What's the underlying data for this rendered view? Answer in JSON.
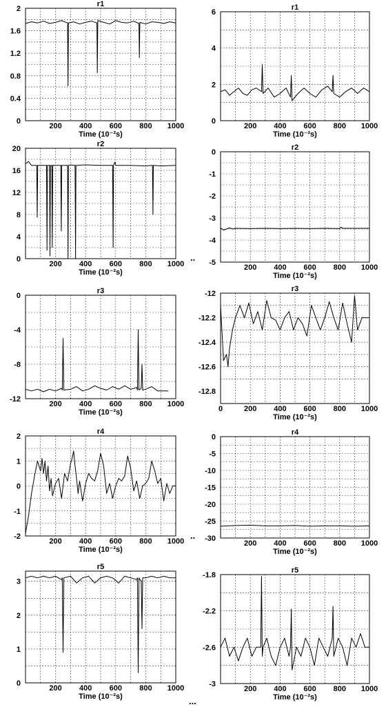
{
  "separators": [
    "..",
    "..",
    "..."
  ],
  "chart_data": [
    {
      "type": "line",
      "title": "r1",
      "xlabel": "Time (10⁻²s)",
      "xlim": [
        0,
        1000
      ],
      "ylim": [
        0,
        2
      ],
      "xticks": [
        200,
        400,
        600,
        800,
        1000
      ],
      "xtick_labels": [
        "200",
        "400",
        "600",
        "800",
        "1000"
      ],
      "yticks": [
        0,
        0.4,
        0.8,
        1.2,
        1.6,
        2
      ],
      "ytick_labels": [
        "0",
        "0.4",
        "0.8",
        "1.2",
        "1.6",
        "2"
      ],
      "series": [
        {
          "x": [
            0,
            40,
            80,
            120,
            160,
            200,
            240,
            280,
            283,
            286,
            320,
            360,
            400,
            440,
            475,
            478,
            481,
            520,
            560,
            600,
            640,
            680,
            720,
            755,
            758,
            761,
            800,
            840,
            880,
            920,
            960,
            1000
          ],
          "y": [
            1.73,
            1.76,
            1.74,
            1.77,
            1.73,
            1.75,
            1.78,
            1.74,
            0.62,
            1.74,
            1.76,
            1.72,
            1.75,
            1.77,
            1.74,
            0.85,
            1.78,
            1.75,
            1.72,
            1.78,
            1.75,
            1.74,
            1.77,
            1.73,
            1.12,
            1.75,
            1.72,
            1.76,
            1.75,
            1.73,
            1.76,
            1.74
          ]
        }
      ]
    },
    {
      "type": "line",
      "title": "r1",
      "xlabel": "Time (10⁻²s)",
      "xlim": [
        0,
        1000
      ],
      "ylim": [
        0,
        6
      ],
      "xticks": [
        200,
        400,
        600,
        800,
        1000
      ],
      "xtick_labels": [
        "200",
        "400",
        "600",
        "800",
        "1000"
      ],
      "yticks": [
        0,
        2,
        4,
        6
      ],
      "ytick_labels": [
        "0",
        "2",
        "4",
        "6"
      ],
      "series": [
        {
          "x": [
            0,
            30,
            60,
            90,
            120,
            150,
            180,
            210,
            240,
            275,
            280,
            285,
            320,
            360,
            400,
            440,
            470,
            475,
            480,
            520,
            560,
            600,
            640,
            680,
            720,
            750,
            755,
            760,
            800,
            840,
            880,
            920,
            960,
            1000
          ],
          "y": [
            1.6,
            1.7,
            1.4,
            1.6,
            1.8,
            1.5,
            1.4,
            1.7,
            1.8,
            1.6,
            3.1,
            1.5,
            1.8,
            1.3,
            1.5,
            1.8,
            1.3,
            2.5,
            1.1,
            1.5,
            1.8,
            1.5,
            1.3,
            1.7,
            1.9,
            1.6,
            2.5,
            1.5,
            1.3,
            1.6,
            1.8,
            1.5,
            1.8,
            1.6
          ]
        }
      ]
    },
    {
      "type": "line",
      "title": "r2",
      "xlabel": "Time (10⁻²s)",
      "xlim": [
        0,
        1000
      ],
      "ylim": [
        0,
        20
      ],
      "xticks": [
        200,
        400,
        600,
        800,
        1000
      ],
      "xtick_labels": [
        "200",
        "400",
        "600",
        "800",
        "1000"
      ],
      "yticks": [
        0,
        4,
        8,
        12,
        16,
        20
      ],
      "ytick_labels": [
        "0",
        "4",
        "8",
        "12",
        "16",
        "20"
      ],
      "series": [
        {
          "x": [
            0,
            20,
            40,
            75,
            78,
            81,
            140,
            143,
            146,
            160,
            163,
            166,
            175,
            178,
            181,
            235,
            238,
            241,
            280,
            283,
            286,
            300,
            330,
            333,
            336,
            400,
            500,
            580,
            583,
            586,
            595,
            600,
            700,
            800,
            845,
            848,
            851,
            900,
            1000
          ],
          "y": [
            17.2,
            17.6,
            16.9,
            16.9,
            7.5,
            16.9,
            16.9,
            1.5,
            16.9,
            16.9,
            0.5,
            16.9,
            16.9,
            2,
            16.9,
            16.9,
            5,
            16.9,
            16.9,
            0,
            16.9,
            17,
            16.9,
            0,
            16.9,
            17,
            16.9,
            16.9,
            2,
            16.9,
            17.5,
            16.9,
            16.9,
            16.8,
            16.9,
            8,
            16.9,
            16.8,
            16.9
          ]
        }
      ]
    },
    {
      "type": "line",
      "title": "r2",
      "xlabel": "Time (10⁻²s)",
      "xlim": [
        0,
        1000
      ],
      "ylim": [
        -5,
        0
      ],
      "xticks": [
        200,
        400,
        600,
        800,
        1000
      ],
      "xtick_labels": [
        "200",
        "400",
        "600",
        "800",
        "1000"
      ],
      "yticks": [
        -5,
        -4,
        -3,
        -2,
        -1,
        0
      ],
      "ytick_labels": [
        "-5",
        "-4",
        "-3",
        "-2",
        "-1",
        "0"
      ],
      "series": [
        {
          "x": [
            0,
            20,
            40,
            60,
            80,
            100,
            200,
            300,
            400,
            500,
            600,
            700,
            800,
            810,
            820,
            900,
            1000
          ],
          "y": [
            -3.45,
            -3.55,
            -3.5,
            -3.45,
            -3.5,
            -3.47,
            -3.48,
            -3.47,
            -3.48,
            -3.47,
            -3.48,
            -3.47,
            -3.48,
            -3.42,
            -3.47,
            -3.47,
            -3.47
          ]
        }
      ]
    },
    {
      "type": "line",
      "title": "r3",
      "xlabel": "Time (10⁻²s)",
      "xlim": [
        0,
        1000
      ],
      "ylim": [
        -12,
        0
      ],
      "xticks": [
        200,
        400,
        600,
        800,
        1000
      ],
      "xtick_labels": [
        "200",
        "400",
        "600",
        "800",
        "1000"
      ],
      "yticks": [
        -12,
        -8,
        -4,
        0
      ],
      "ytick_labels": [
        "-12",
        "-8",
        "-4",
        "0"
      ],
      "series": [
        {
          "x": [
            0,
            40,
            80,
            120,
            160,
            200,
            240,
            245,
            250,
            255,
            300,
            340,
            380,
            420,
            460,
            500,
            540,
            580,
            620,
            660,
            700,
            740,
            745,
            750,
            755,
            770,
            775,
            780,
            800,
            840,
            880,
            920,
            950
          ],
          "y": [
            -10.9,
            -11.1,
            -10.9,
            -11.2,
            -10.9,
            -11.1,
            -10.8,
            -11,
            -5,
            -11,
            -10.9,
            -10.6,
            -11.1,
            -10.9,
            -10.5,
            -10.8,
            -11,
            -10.6,
            -10.9,
            -10.5,
            -10.9,
            -10.7,
            -11,
            -4,
            -11,
            -10.8,
            -8,
            -11,
            -10.9,
            -10.6,
            -11.1,
            -11.1,
            -11.1
          ]
        }
      ]
    },
    {
      "type": "line",
      "title": "r3",
      "xlabel": "Time (10⁻²s)",
      "xlim": [
        0,
        1000
      ],
      "ylim": [
        -12.9,
        -12
      ],
      "xticks": [
        0,
        200,
        400,
        600,
        800,
        1000
      ],
      "xtick_labels": [
        "0",
        "200",
        "400",
        "600",
        "800",
        "1000"
      ],
      "yticks": [
        -12.8,
        -12.6,
        -12.4,
        -12.2,
        -12
      ],
      "ytick_labels": [
        "-12.8",
        "-12.6",
        "-12.4",
        "-12.2",
        "-12"
      ],
      "series": [
        {
          "x": [
            0,
            20,
            40,
            50,
            60,
            80,
            100,
            130,
            160,
            190,
            220,
            250,
            280,
            310,
            340,
            370,
            400,
            430,
            460,
            490,
            520,
            550,
            580,
            610,
            640,
            670,
            700,
            730,
            760,
            790,
            820,
            850,
            880,
            900,
            920,
            950,
            980,
            1000
          ],
          "y": [
            -12.1,
            -12.55,
            -12.5,
            -12.6,
            -12.45,
            -12.3,
            -12.2,
            -12.1,
            -12.2,
            -12.08,
            -12.25,
            -12.15,
            -12.3,
            -12.06,
            -12.2,
            -12.22,
            -12.3,
            -12.2,
            -12.15,
            -12.3,
            -12.2,
            -12.25,
            -12.35,
            -12.1,
            -12.2,
            -12.3,
            -12.2,
            -12.07,
            -12.2,
            -12.3,
            -12.08,
            -12.25,
            -12.4,
            -12.02,
            -12.3,
            -12.2,
            -12.2,
            -12.2
          ]
        }
      ]
    },
    {
      "type": "line",
      "title": "r4",
      "xlabel": "Time (10⁻²s)",
      "xlim": [
        0,
        1000
      ],
      "ylim": [
        -2,
        2
      ],
      "xticks": [
        200,
        400,
        600,
        800,
        1000
      ],
      "xtick_labels": [
        "200",
        "400",
        "600",
        "800",
        "1000"
      ],
      "yticks": [
        -2,
        -1,
        0,
        1,
        2
      ],
      "ytick_labels": [
        "-2",
        "-1",
        "0",
        "1",
        "2"
      ],
      "series": [
        {
          "x": [
            0,
            20,
            40,
            60,
            80,
            100,
            110,
            120,
            130,
            140,
            150,
            160,
            170,
            180,
            200,
            220,
            240,
            260,
            280,
            300,
            310,
            320,
            330,
            340,
            350,
            360,
            380,
            400,
            420,
            440,
            460,
            480,
            500,
            520,
            540,
            560,
            580,
            600,
            620,
            640,
            660,
            680,
            700,
            720,
            740,
            760,
            780,
            800,
            820,
            840,
            860,
            880,
            900,
            920,
            940,
            960,
            980,
            1000
          ],
          "y": [
            -1.9,
            -1.2,
            -0.3,
            0.4,
            1,
            0.6,
            1.1,
            0.5,
            1,
            0.2,
            0.8,
            -0.2,
            0.3,
            -0.4,
            0.1,
            0.3,
            -0.5,
            0.5,
            0.2,
            0.9,
            1.1,
            1.4,
            0.8,
            0.3,
            -0.3,
            0.2,
            -0.6,
            0.1,
            0.5,
            0.3,
            0.2,
            0.6,
            1.3,
            0.8,
            -0.3,
            0.1,
            -0.5,
            0,
            0.3,
            0.2,
            0.4,
            1.2,
            0.7,
            -0.2,
            0.2,
            -0.5,
            0,
            0.1,
            0.3,
            1,
            0.6,
            0.1,
            0.3,
            -0.6,
            0.1,
            -0.3,
            0,
            0
          ]
        }
      ]
    },
    {
      "type": "line",
      "title": "r4",
      "xlabel": "Time (10⁻²s)",
      "xlim": [
        0,
        1000
      ],
      "ylim": [
        -30,
        0
      ],
      "xticks": [
        200,
        400,
        600,
        800,
        1000
      ],
      "xtick_labels": [
        "200",
        "400",
        "600",
        "800",
        "1000"
      ],
      "yticks": [
        -30,
        -25,
        -20,
        -15,
        -10,
        -5,
        0
      ],
      "ytick_labels": [
        "-30",
        "-25",
        "-20",
        "-15",
        "-10",
        "-5",
        "0"
      ],
      "series": [
        {
          "x": [
            0,
            100,
            200,
            300,
            400,
            500,
            600,
            700,
            800,
            900,
            1000
          ],
          "y": [
            -26.5,
            -26.3,
            -26.2,
            -26.4,
            -26.4,
            -26.3,
            -26.5,
            -26.4,
            -26.4,
            -26.5,
            -26.4
          ]
        }
      ]
    },
    {
      "type": "line",
      "title": "r5",
      "xlabel": "Time (10⁻²s)",
      "xlim": [
        0,
        1000
      ],
      "ylim": [
        0,
        3.3
      ],
      "xticks": [
        200,
        400,
        600,
        800,
        1000
      ],
      "xtick_labels": [
        "200",
        "400",
        "600",
        "800",
        "1000"
      ],
      "yticks": [
        0,
        1,
        2,
        3
      ],
      "ytick_labels": [
        "0",
        "1",
        "2",
        "3"
      ],
      "series": [
        {
          "x": [
            0,
            40,
            80,
            120,
            160,
            200,
            240,
            245,
            250,
            255,
            300,
            340,
            380,
            420,
            460,
            500,
            540,
            580,
            620,
            660,
            700,
            740,
            745,
            750,
            755,
            770,
            775,
            780,
            800,
            840,
            880,
            920,
            960,
            1000
          ],
          "y": [
            3.1,
            3.15,
            3.1,
            3.15,
            3.1,
            3.15,
            3.05,
            3.1,
            0.9,
            3.1,
            3.15,
            2.95,
            3.1,
            3.15,
            2.95,
            3.1,
            3.15,
            3.1,
            2.95,
            3.15,
            3.1,
            3.05,
            3.1,
            0.3,
            3.1,
            3,
            1.6,
            3.1,
            3.1,
            3.15,
            3.1,
            3.15,
            3.1,
            3.1
          ]
        }
      ]
    },
    {
      "type": "line",
      "title": "r5",
      "xlabel": "Time (10⁻²s)",
      "xlim": [
        0,
        1000
      ],
      "ylim": [
        -3,
        -1.8
      ],
      "xticks": [
        200,
        400,
        600,
        800,
        1000
      ],
      "xtick_labels": [
        "200",
        "400",
        "600",
        "800",
        "1000"
      ],
      "yticks": [
        -3,
        -2.6,
        -2.2,
        -1.8
      ],
      "ytick_labels": [
        "-3",
        "-2.6",
        "-2.2",
        "-1.8"
      ],
      "series": [
        {
          "x": [
            0,
            30,
            60,
            90,
            120,
            150,
            180,
            210,
            240,
            270,
            275,
            280,
            285,
            310,
            340,
            370,
            400,
            430,
            460,
            470,
            475,
            480,
            510,
            540,
            570,
            600,
            630,
            660,
            690,
            720,
            750,
            755,
            760,
            790,
            820,
            850,
            880,
            910,
            940,
            970,
            1000
          ],
          "y": [
            -2.6,
            -2.5,
            -2.7,
            -2.6,
            -2.75,
            -2.6,
            -2.5,
            -2.7,
            -2.6,
            -2.6,
            -1.82,
            -2.7,
            -2.6,
            -2.5,
            -2.7,
            -2.8,
            -2.6,
            -2.5,
            -2.7,
            -2.6,
            -2.18,
            -2.85,
            -2.6,
            -2.7,
            -2.5,
            -2.6,
            -2.8,
            -2.5,
            -2.6,
            -2.7,
            -2.5,
            -2.15,
            -2.7,
            -2.5,
            -2.6,
            -2.8,
            -2.5,
            -2.6,
            -2.45,
            -2.6,
            -2.6
          ]
        }
      ]
    }
  ]
}
